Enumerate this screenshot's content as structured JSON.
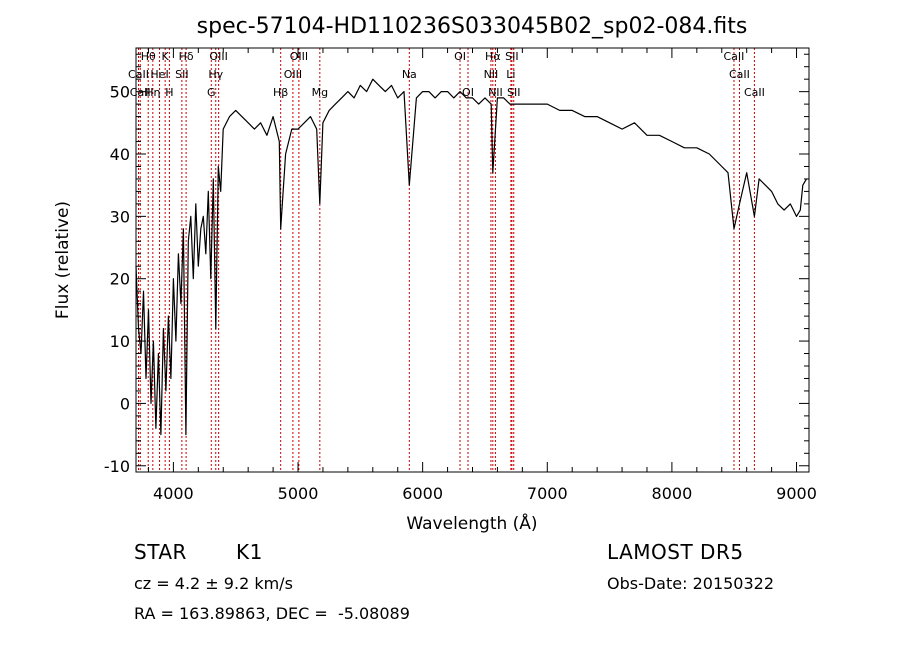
{
  "chart_data": {
    "type": "line",
    "title": "spec-57104-HD110236S033045B02_sp02-084.fits",
    "xlabel": "Wavelength (Å)",
    "ylabel": "Flux (relative)",
    "xlim": [
      3700,
      9100
    ],
    "ylim": [
      -11,
      57
    ],
    "x_ticks": [
      4000,
      5000,
      6000,
      7000,
      8000,
      9000
    ],
    "y_ticks": [
      -10,
      0,
      10,
      20,
      30,
      40,
      50
    ],
    "grid": false,
    "legend": "none",
    "series": [
      {
        "x": [
          3700,
          3720,
          3740,
          3760,
          3780,
          3800,
          3820,
          3840,
          3860,
          3880,
          3900,
          3920,
          3940,
          3960,
          3980,
          4000,
          4020,
          4040,
          4060,
          4080,
          4100,
          4120,
          4140,
          4160,
          4180,
          4200,
          4220,
          4240,
          4260,
          4280,
          4300,
          4320,
          4340,
          4360,
          4380,
          4400,
          4450,
          4500,
          4550,
          4600,
          4650,
          4700,
          4750,
          4800,
          4850,
          4861,
          4900,
          4950,
          5000,
          5050,
          5100,
          5150,
          5175,
          5200,
          5250,
          5300,
          5350,
          5400,
          5450,
          5500,
          5550,
          5600,
          5650,
          5700,
          5750,
          5800,
          5850,
          5893,
          5950,
          6000,
          6050,
          6100,
          6150,
          6200,
          6250,
          6300,
          6350,
          6400,
          6450,
          6500,
          6550,
          6563,
          6600,
          6650,
          6700,
          6750,
          6800,
          6850,
          6900,
          6950,
          7000,
          7100,
          7200,
          7300,
          7400,
          7500,
          7600,
          7700,
          7800,
          7900,
          8000,
          8100,
          8200,
          8300,
          8400,
          8450,
          8498,
          8542,
          8600,
          8662,
          8700,
          8750,
          8800,
          8850,
          8900,
          8950,
          9000,
          9030,
          9050,
          9080
        ],
        "y": [
          22,
          12,
          8,
          18,
          4,
          15,
          0,
          10,
          -4,
          8,
          -5,
          12,
          2,
          14,
          4,
          20,
          10,
          24,
          16,
          28,
          -5,
          26,
          30,
          20,
          32,
          22,
          28,
          30,
          24,
          34,
          20,
          36,
          12,
          38,
          34,
          44,
          46,
          47,
          46,
          45,
          44,
          45,
          43,
          46,
          42,
          28,
          40,
          44,
          44,
          45,
          46,
          44,
          32,
          45,
          47,
          48,
          49,
          50,
          49,
          51,
          50,
          52,
          51,
          50,
          51,
          49,
          50,
          35,
          49,
          50,
          50,
          49,
          50,
          50,
          49,
          50,
          49,
          49,
          48,
          49,
          48,
          37,
          49,
          49,
          48,
          48,
          48,
          48,
          48,
          48,
          48,
          47,
          47,
          46,
          46,
          45,
          44,
          45,
          43,
          43,
          42,
          41,
          41,
          40,
          38,
          37,
          28,
          32,
          37,
          30,
          36,
          35,
          34,
          32,
          31,
          32,
          30,
          31,
          35,
          36
        ]
      }
    ],
    "lines": [
      {
        "label": "Hθ",
        "x": 3798,
        "row": 0
      },
      {
        "label": "CaII",
        "x": 3720,
        "row": 1
      },
      {
        "label": "CaII",
        "x": 3734,
        "row": 2
      },
      {
        "label": "Hη",
        "x": 3835,
        "row": 2
      },
      {
        "label": "K",
        "x": 3934,
        "row": 0
      },
      {
        "label": "HeI",
        "x": 3889,
        "row": 1
      },
      {
        "label": "H",
        "x": 3968,
        "row": 2
      },
      {
        "label": "Hδ",
        "x": 4102,
        "row": 0
      },
      {
        "label": "SII",
        "x": 4068,
        "row": 1
      },
      {
        "label": "OIII",
        "x": 4363,
        "row": 0
      },
      {
        "label": "Hγ",
        "x": 4340,
        "row": 1
      },
      {
        "label": "G",
        "x": 4304,
        "row": 2
      },
      {
        "label": "Hβ",
        "x": 4861,
        "row": 2
      },
      {
        "label": "OIII",
        "x": 5007,
        "row": 0
      },
      {
        "label": "OIII",
        "x": 4959,
        "row": 1
      },
      {
        "label": "Mg",
        "x": 5175,
        "row": 2
      },
      {
        "label": "Na",
        "x": 5893,
        "row": 1
      },
      {
        "label": "OI",
        "x": 6300,
        "row": 0
      },
      {
        "label": "OI",
        "x": 6364,
        "row": 2
      },
      {
        "label": "Hα",
        "x": 6563,
        "row": 0
      },
      {
        "label": "SII",
        "x": 6716,
        "row": 0
      },
      {
        "label": "NII",
        "x": 6548,
        "row": 1
      },
      {
        "label": "Li",
        "x": 6708,
        "row": 1
      },
      {
        "label": "NII",
        "x": 6584,
        "row": 2
      },
      {
        "label": "SII",
        "x": 6731,
        "row": 2
      },
      {
        "label": "CaII",
        "x": 8498,
        "row": 0
      },
      {
        "label": "CaII",
        "x": 8542,
        "row": 1
      },
      {
        "label": "CaII",
        "x": 8662,
        "row": 2
      }
    ]
  },
  "info": {
    "object_class": "STAR",
    "subclass": "K1",
    "cz": "cz = 4.2 ± 9.2 km/s",
    "coords": "RA = 163.89863, DEC =  -5.08089",
    "survey": "LAMOST DR5",
    "obs_date": "Obs-Date: 20150322"
  },
  "colors": {
    "spectrum": "#000000",
    "line_markers": "#cc0000",
    "axes": "#000000",
    "background": "#ffffff"
  }
}
